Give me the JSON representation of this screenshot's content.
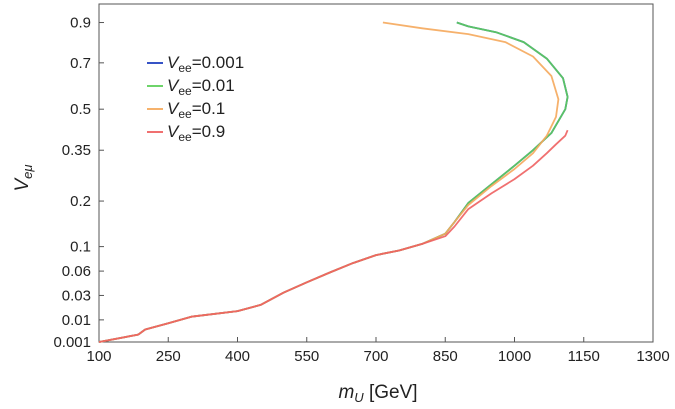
{
  "chart_data": {
    "type": "line",
    "xlabel_main": "m",
    "xlabel_sub": "U",
    "xlabel_unit": " [GeV]",
    "ylabel_main": "V",
    "ylabel_sub": "eμ",
    "xlim": [
      100,
      1300
    ],
    "ylim": [
      0.001,
      1.0
    ],
    "x_ticks": [
      100,
      250,
      400,
      550,
      700,
      850,
      1000,
      1150,
      1300
    ],
    "x_tick_labels": [
      "100",
      "250",
      "400",
      "550",
      "700",
      "850",
      "1000",
      "1150",
      "1300"
    ],
    "y_ticks": [
      0.001,
      0.01,
      0.03,
      0.06,
      0.1,
      0.2,
      0.35,
      0.5,
      0.7,
      0.9
    ],
    "y_tick_labels": [
      "0.001",
      "0.01",
      "0.03",
      "0.06",
      "0.1",
      "0.2",
      "0.35",
      "0.5",
      "0.7",
      "0.9"
    ],
    "y_scale_note": "nonlinear (V^0.52 display)",
    "legend_position": "upper-left",
    "series": [
      {
        "name_main": "V",
        "name_sub": "ee",
        "name_value": "=0.001",
        "color": "#2040c0",
        "x": [
          100,
          185,
          200,
          250,
          300,
          400,
          450,
          500,
          550,
          600,
          650,
          700,
          750,
          800,
          850,
          870,
          900,
          950,
          1000,
          1040,
          1080,
          1110,
          1115,
          1105,
          1070,
          1020,
          960,
          900,
          875
        ],
        "y": [
          0.001,
          0.003,
          0.005,
          0.008,
          0.012,
          0.016,
          0.021,
          0.033,
          0.045,
          0.058,
          0.072,
          0.085,
          0.093,
          0.105,
          0.125,
          0.15,
          0.195,
          0.245,
          0.3,
          0.35,
          0.41,
          0.5,
          0.55,
          0.63,
          0.72,
          0.8,
          0.85,
          0.88,
          0.9
        ]
      },
      {
        "name_main": "V",
        "name_sub": "ee",
        "name_value": "=0.01",
        "color": "#5ecf5a",
        "x": [
          100,
          185,
          200,
          250,
          300,
          400,
          450,
          500,
          550,
          600,
          650,
          700,
          750,
          800,
          850,
          870,
          900,
          950,
          1000,
          1040,
          1080,
          1110,
          1115,
          1105,
          1070,
          1020,
          960,
          900,
          875
        ],
        "y": [
          0.001,
          0.003,
          0.005,
          0.008,
          0.012,
          0.016,
          0.021,
          0.033,
          0.045,
          0.058,
          0.072,
          0.085,
          0.093,
          0.105,
          0.125,
          0.15,
          0.195,
          0.245,
          0.3,
          0.35,
          0.41,
          0.5,
          0.55,
          0.63,
          0.72,
          0.8,
          0.85,
          0.88,
          0.9
        ]
      },
      {
        "name_main": "V",
        "name_sub": "ee",
        "name_value": "=0.1",
        "color": "#f5a95c",
        "x": [
          100,
          185,
          200,
          250,
          300,
          400,
          450,
          500,
          550,
          600,
          650,
          700,
          750,
          800,
          850,
          870,
          900,
          950,
          1000,
          1040,
          1070,
          1090,
          1095,
          1080,
          1040,
          980,
          900,
          800,
          715
        ],
        "y": [
          0.001,
          0.003,
          0.005,
          0.008,
          0.012,
          0.016,
          0.021,
          0.033,
          0.045,
          0.058,
          0.072,
          0.085,
          0.093,
          0.105,
          0.125,
          0.15,
          0.19,
          0.24,
          0.29,
          0.34,
          0.4,
          0.47,
          0.54,
          0.64,
          0.73,
          0.8,
          0.84,
          0.87,
          0.9
        ]
      },
      {
        "name_main": "V",
        "name_sub": "ee",
        "name_value": "=0.9",
        "color": "#ee6060",
        "x": [
          100,
          185,
          200,
          250,
          300,
          400,
          450,
          500,
          550,
          600,
          650,
          700,
          750,
          800,
          850,
          870,
          900,
          950,
          1000,
          1040,
          1070,
          1090,
          1110,
          1115
        ],
        "y": [
          0.001,
          0.003,
          0.005,
          0.008,
          0.012,
          0.016,
          0.021,
          0.033,
          0.045,
          0.058,
          0.072,
          0.085,
          0.093,
          0.105,
          0.12,
          0.14,
          0.18,
          0.22,
          0.26,
          0.3,
          0.34,
          0.37,
          0.4,
          0.42
        ]
      }
    ]
  }
}
